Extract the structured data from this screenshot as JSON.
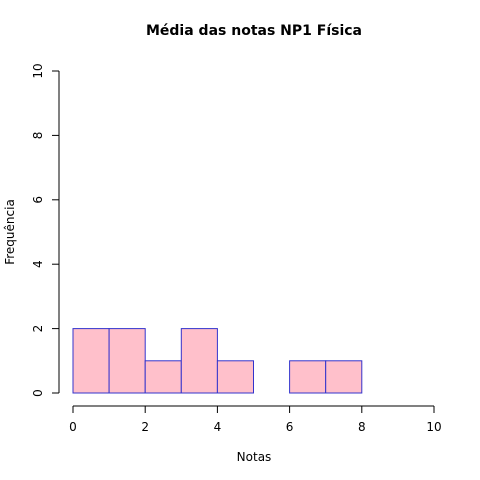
{
  "chart_data": {
    "type": "bar",
    "subtype": "histogram",
    "title": "Média das notas NP1 Física",
    "xlabel": "Notas",
    "ylabel": "Frequência",
    "bins": [
      {
        "from": 0,
        "to": 1,
        "count": 2
      },
      {
        "from": 1,
        "to": 2,
        "count": 2
      },
      {
        "from": 2,
        "to": 3,
        "count": 1
      },
      {
        "from": 3,
        "to": 4,
        "count": 2
      },
      {
        "from": 4,
        "to": 5,
        "count": 1
      },
      {
        "from": 5,
        "to": 6,
        "count": 0
      },
      {
        "from": 6,
        "to": 7,
        "count": 1
      },
      {
        "from": 7,
        "to": 8,
        "count": 1
      }
    ],
    "xlim": [
      0,
      10
    ],
    "ylim": [
      0,
      10
    ],
    "xticks": [
      0,
      2,
      4,
      6,
      8,
      10
    ],
    "yticks": [
      0,
      2,
      4,
      6,
      8,
      10
    ],
    "grid": false,
    "bar_fill": "#ffc0cb",
    "bar_border": "#3333cc"
  }
}
